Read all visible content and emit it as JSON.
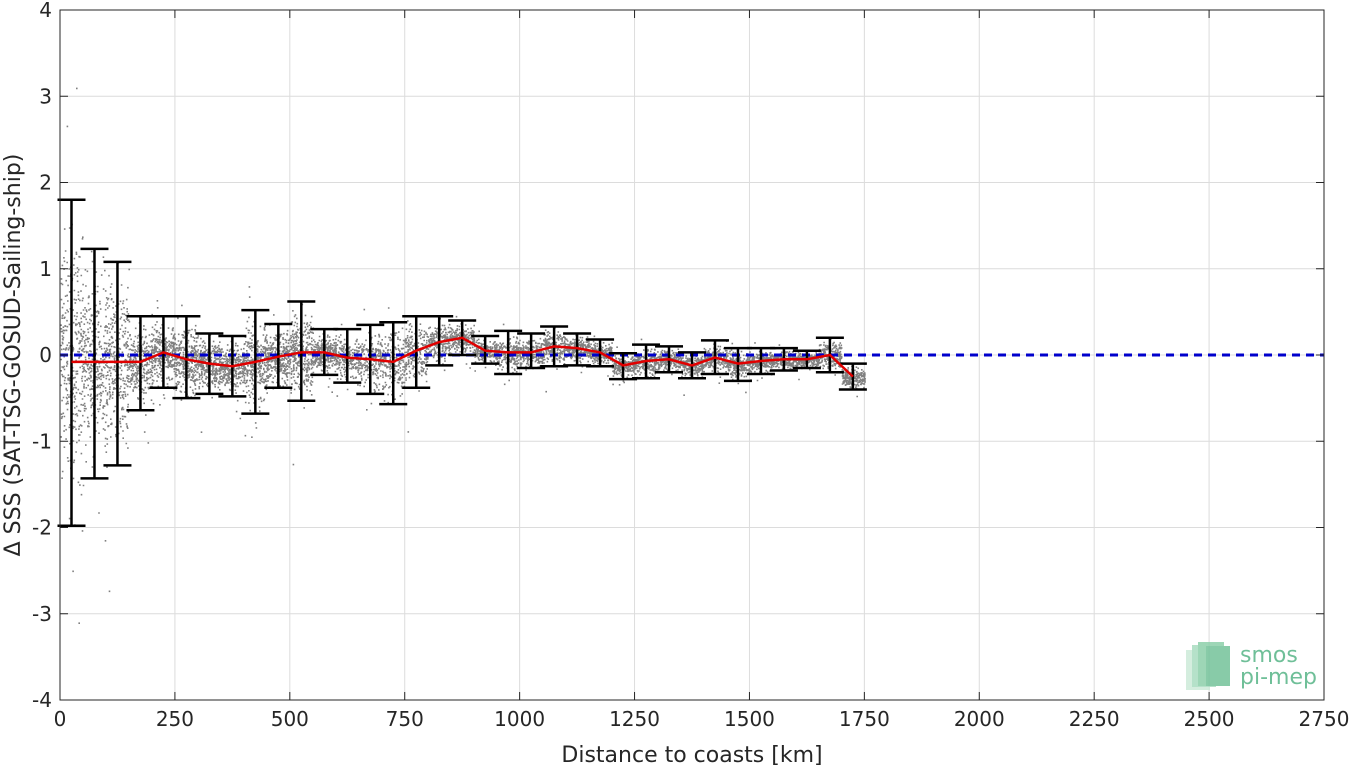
{
  "chart_data": {
    "type": "scatter",
    "title": "",
    "xlabel": "Distance to coasts [km]",
    "ylabel": "Δ SSS (SAT-TSG-GOSUD-Sailing-ship)",
    "xlim": [
      0,
      2750
    ],
    "ylim": [
      -4,
      4
    ],
    "x_ticks": [
      0,
      250,
      500,
      750,
      1000,
      1250,
      1500,
      1750,
      2000,
      2250,
      2500,
      2750
    ],
    "y_ticks": [
      -4,
      -3,
      -2,
      -1,
      0,
      1,
      2,
      3,
      4
    ],
    "x_tick_labels": [
      "0",
      "250",
      "500",
      "750",
      "1000",
      "1250",
      "1500",
      "1750",
      "2000",
      "2250",
      "2500",
      "2750"
    ],
    "y_tick_labels": [
      "-4",
      "-3",
      "-2",
      "-1",
      "0",
      "1",
      "2",
      "3",
      "4"
    ],
    "grid": true,
    "reference_line": {
      "y": 0,
      "style": "dashed",
      "color": "#0000cc"
    },
    "series": [
      {
        "kind": "binned_mean_with_std",
        "color": "#e00000",
        "error_bar_color": "#000000",
        "x": [
          25,
          75,
          125,
          175,
          225,
          275,
          325,
          375,
          425,
          475,
          525,
          575,
          625,
          675,
          725,
          775,
          825,
          875,
          925,
          975,
          1025,
          1075,
          1125,
          1175,
          1225,
          1275,
          1325,
          1375,
          1425,
          1475,
          1525,
          1575,
          1625,
          1675,
          1725
        ],
        "y": [
          -0.08,
          -0.08,
          -0.08,
          -0.08,
          0.03,
          -0.05,
          -0.1,
          -0.13,
          -0.08,
          -0.02,
          0.03,
          0.03,
          -0.03,
          -0.05,
          -0.08,
          0.05,
          0.15,
          0.2,
          0.05,
          0.03,
          0.03,
          0.1,
          0.08,
          0.03,
          -0.12,
          -0.07,
          -0.05,
          -0.12,
          -0.03,
          -0.1,
          -0.07,
          -0.05,
          -0.05,
          0.0,
          -0.25
        ],
        "upper": [
          1.8,
          1.23,
          1.08,
          0.45,
          0.45,
          0.45,
          0.25,
          0.22,
          0.52,
          0.36,
          0.62,
          0.3,
          0.3,
          0.35,
          0.38,
          0.45,
          0.45,
          0.4,
          0.22,
          0.28,
          0.25,
          0.33,
          0.25,
          0.18,
          0.02,
          0.12,
          0.1,
          0.03,
          0.17,
          0.08,
          0.08,
          0.08,
          0.05,
          0.2,
          -0.1
        ],
        "lower": [
          -1.98,
          -1.43,
          -1.28,
          -0.64,
          -0.38,
          -0.5,
          -0.45,
          -0.48,
          -0.68,
          -0.38,
          -0.53,
          -0.23,
          -0.32,
          -0.45,
          -0.57,
          -0.38,
          -0.12,
          0.0,
          -0.1,
          -0.22,
          -0.15,
          -0.13,
          -0.12,
          -0.13,
          -0.28,
          -0.27,
          -0.2,
          -0.27,
          -0.22,
          -0.3,
          -0.22,
          -0.18,
          -0.15,
          -0.2,
          -0.4
        ]
      }
    ],
    "scatter": {
      "color": "#808080",
      "x_range": [
        0,
        1750
      ],
      "spread_notes": "dense gray points, wide spread near coast narrowing offshore"
    }
  },
  "colors": {
    "scatter": "#808080",
    "mean_line": "#e00000",
    "error_bars": "#000000",
    "zero_line": "#0000cc",
    "grid": "#dcdcdc",
    "axes": "#262626",
    "logo": "#6fbf98"
  },
  "logo": {
    "line1": "smos",
    "line2": "pi-mep"
  }
}
